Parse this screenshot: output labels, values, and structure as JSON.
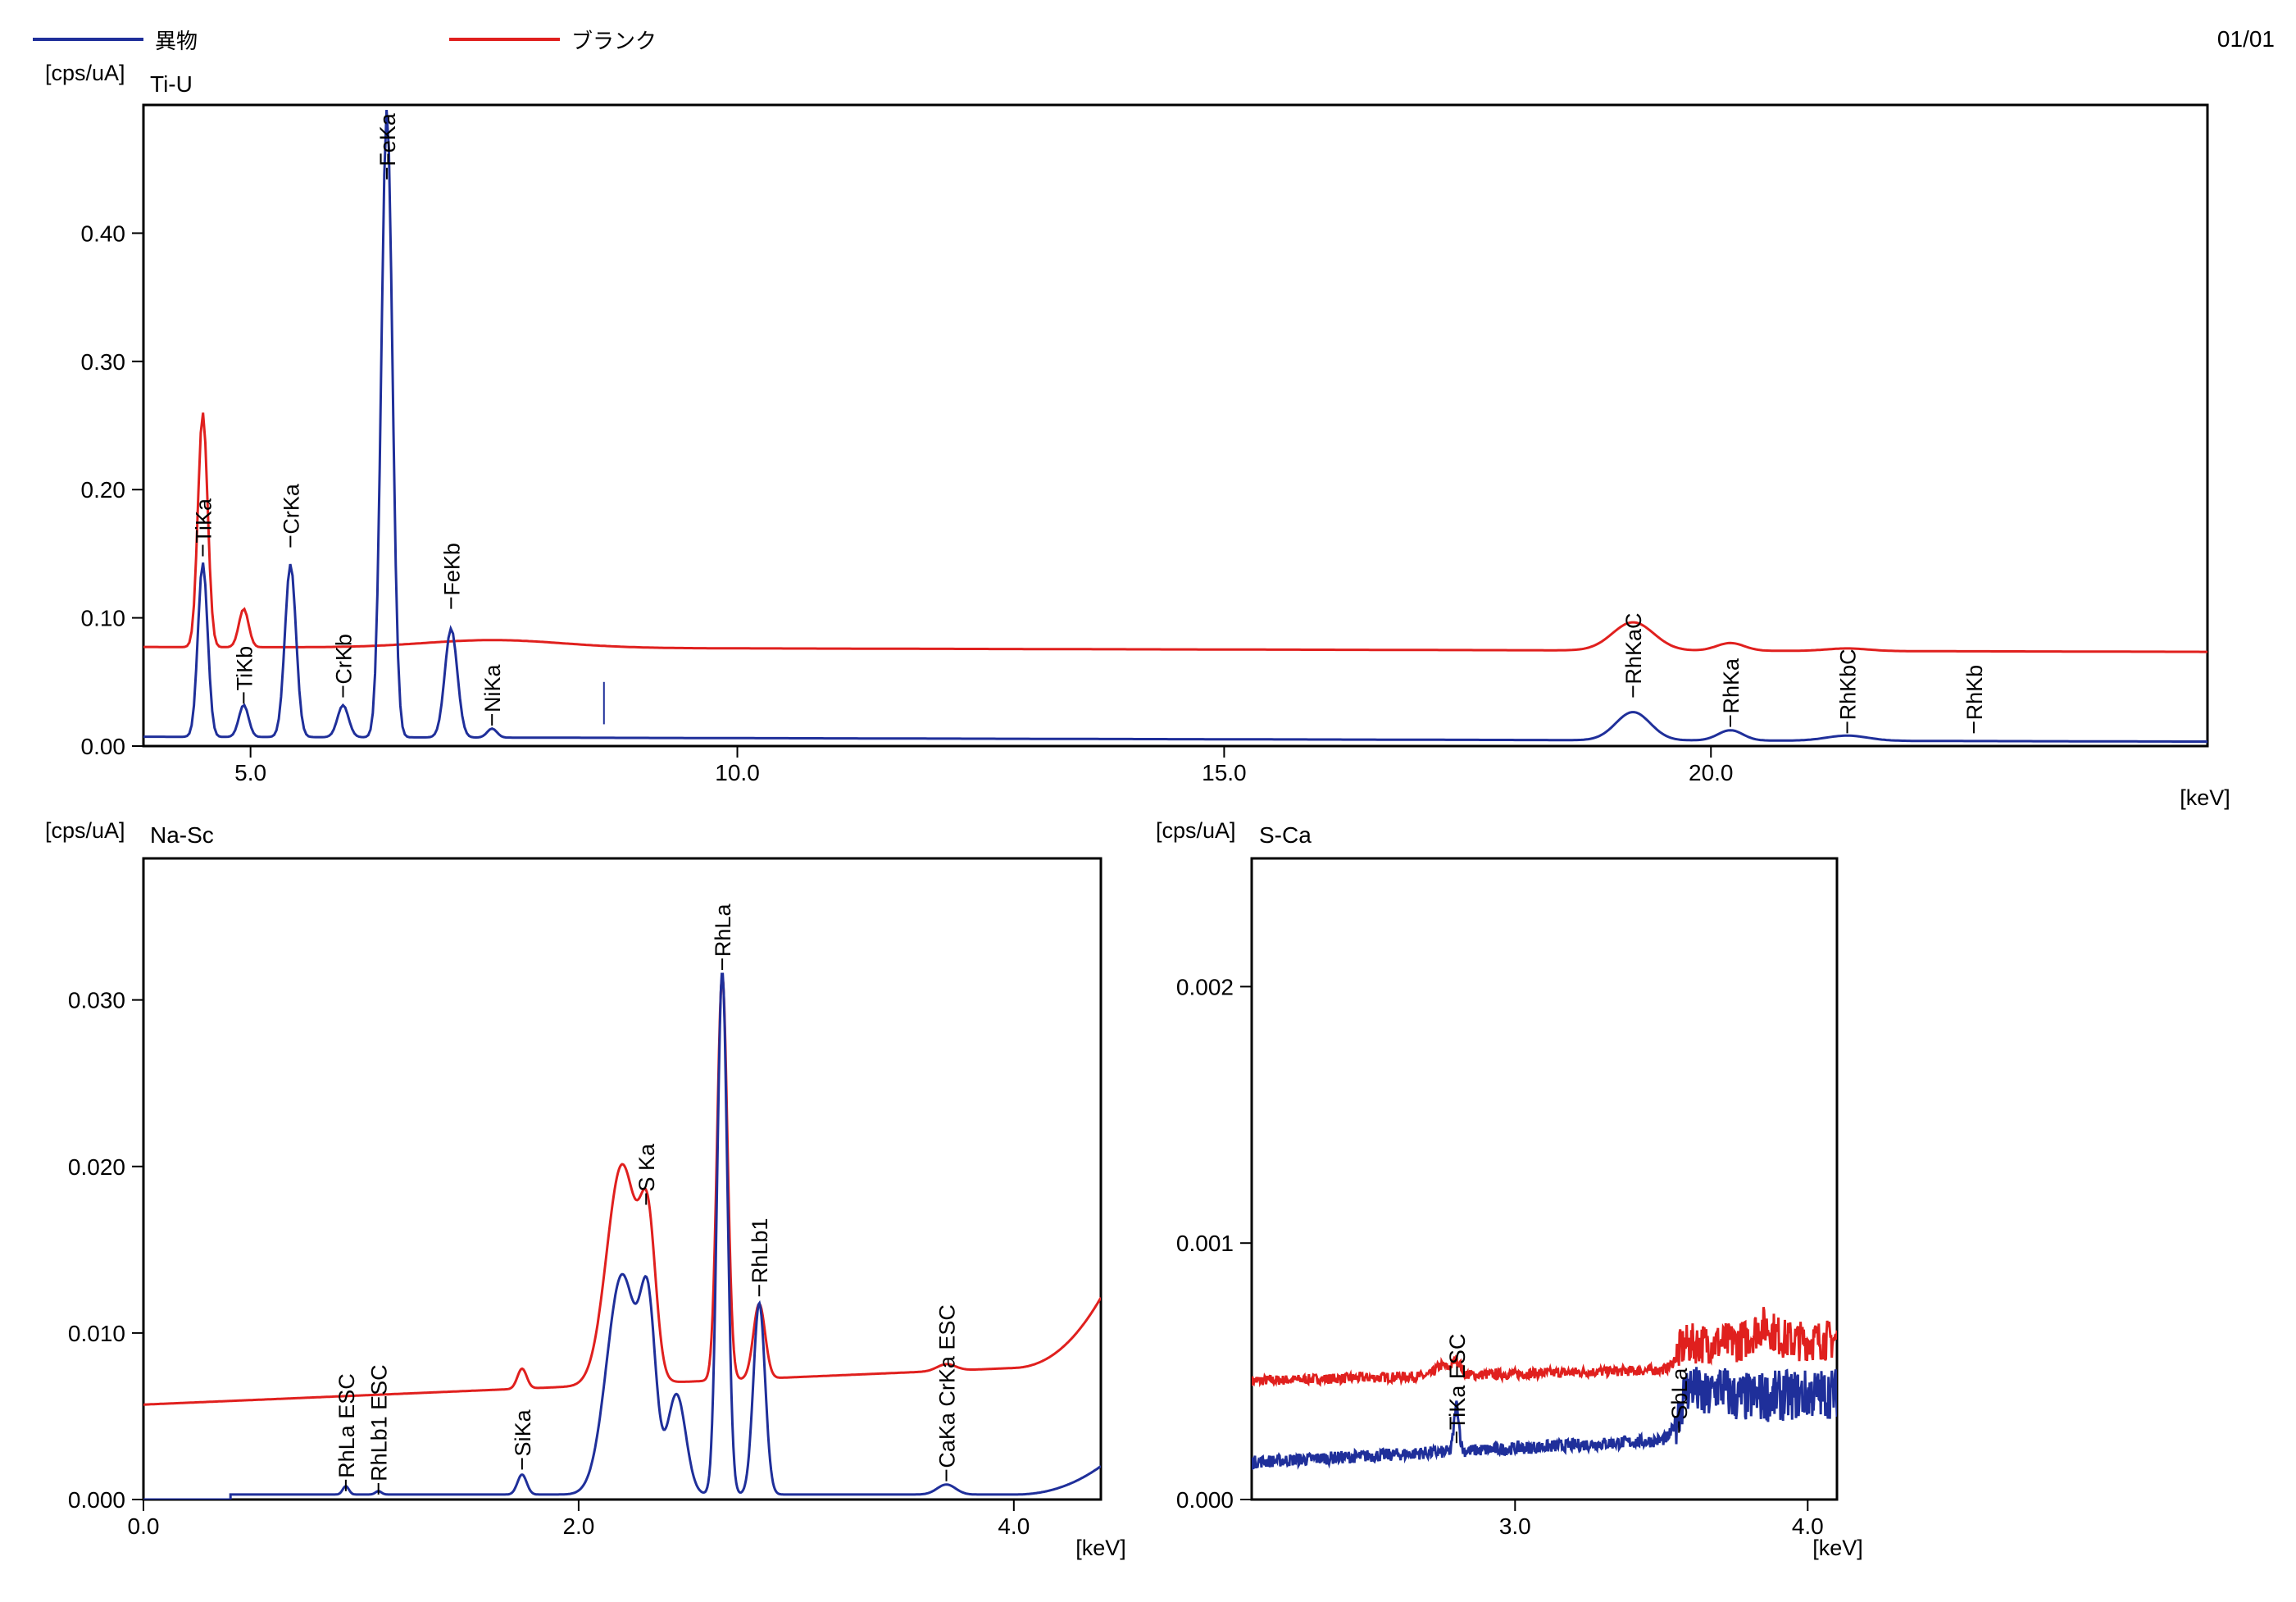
{
  "legend": {
    "items": [
      {
        "label": "異物",
        "color": "#1f2f9a"
      },
      {
        "label": "ブランク",
        "color": "#e0201e"
      }
    ]
  },
  "page_number": "01/01",
  "chart_data": [
    {
      "type": "line",
      "title": "Ti-U",
      "ylabel": "[cps/uA]",
      "xlabel": "[keV]",
      "xlim": [
        3.9,
        25.1
      ],
      "ylim": [
        0,
        0.5
      ],
      "xticks": [
        5.0,
        10.0,
        15.0,
        20.0
      ],
      "xtick_labels": [
        "5.0",
        "10.0",
        "15.0",
        "20.0"
      ],
      "yticks": [
        0.0,
        0.1,
        0.2,
        0.3,
        0.4
      ],
      "ytick_labels": [
        "0.00",
        "0.10",
        "0.20",
        "0.30",
        "0.40"
      ],
      "series": [
        {
          "name": "異物",
          "color": "#1f2f9a",
          "baseline": 0.008,
          "slope": -0.00018,
          "peaks": [
            [
              4.51,
              0.136,
              0.07
            ],
            [
              4.93,
              0.025,
              0.07
            ],
            [
              5.41,
              0.135,
              0.08
            ],
            [
              5.95,
              0.025,
              0.08
            ],
            [
              6.4,
              0.49,
              0.08
            ],
            [
              7.06,
              0.085,
              0.09
            ],
            [
              7.48,
              0.007,
              0.07
            ],
            [
              19.2,
              0.022,
              0.25
            ],
            [
              20.2,
              0.008,
              0.18
            ],
            [
              21.4,
              0.004,
              0.3
            ]
          ]
        },
        {
          "name": "ブランク",
          "color": "#e0201e",
          "baseline": 0.078,
          "slope": -0.00018,
          "bump": [
            7.5,
            0.006
          ],
          "peaks": [
            [
              4.51,
              0.183,
              0.07
            ],
            [
              4.93,
              0.03,
              0.07
            ],
            [
              19.2,
              0.022,
              0.3
            ],
            [
              20.2,
              0.006,
              0.2
            ],
            [
              21.4,
              0.002,
              0.3
            ]
          ]
        }
      ],
      "annotations": [
        {
          "label": "TiKa",
          "x": 4.51,
          "y": 0.148
        },
        {
          "label": "TiKb",
          "x": 4.93,
          "y": 0.033
        },
        {
          "label": "CrKa",
          "x": 5.41,
          "y": 0.155
        },
        {
          "label": "CrKb",
          "x": 5.95,
          "y": 0.038
        },
        {
          "label": "FeKa",
          "x": 6.4,
          "y": 0.442
        },
        {
          "label": "FeKb",
          "x": 7.06,
          "y": 0.107
        },
        {
          "label": "NiKa",
          "x": 7.48,
          "y": 0.016
        },
        {
          "label": "RhKaC",
          "x": 19.2,
          "y": 0.038
        },
        {
          "label": "RhKa",
          "x": 20.2,
          "y": 0.015
        },
        {
          "label": "RhKbC",
          "x": 21.4,
          "y": 0.01
        },
        {
          "label": "RhKb",
          "x": 22.7,
          "y": 0.01
        }
      ],
      "marker": {
        "x": 8.63,
        "y_from": 0.017,
        "y_to": 0.05
      }
    },
    {
      "type": "line",
      "title": "Na-Sc",
      "ylabel": "[cps/uA]",
      "xlabel": "[keV]",
      "xlim": [
        0.0,
        4.4
      ],
      "ylim": [
        0,
        0.0385
      ],
      "xticks": [
        0.0,
        2.0,
        4.0
      ],
      "xtick_labels": [
        "0.0",
        "2.0",
        "4.0"
      ],
      "yticks": [
        0.0,
        0.01,
        0.02,
        0.03
      ],
      "ytick_labels": [
        "0.000",
        "0.010",
        "0.020",
        "0.030"
      ],
      "series": [
        {
          "name": "異物",
          "color": "#1f2f9a",
          "baseline": 0.0003,
          "start": 0.4,
          "tail": [
            4.0,
            0.0017
          ],
          "peaks": [
            [
              0.93,
              0.0005,
              0.02
            ],
            [
              1.08,
              0.0002,
              0.02
            ],
            [
              1.74,
              0.0012,
              0.03
            ],
            [
              2.2,
              0.0132,
              0.1
            ],
            [
              2.32,
              0.0095,
              0.05
            ],
            [
              2.45,
              0.006,
              0.06
            ],
            [
              2.66,
              0.0314,
              0.033
            ],
            [
              2.83,
              0.0115,
              0.038
            ],
            [
              3.69,
              0.0006,
              0.06
            ]
          ]
        },
        {
          "name": "ブランク",
          "color": "#e0201e",
          "baseline": 0.0057,
          "start": 0.0,
          "slope": 0.00055,
          "tail": [
            4.0,
            0.004
          ],
          "peaks": [
            [
              1.74,
              0.0012,
              0.03
            ],
            [
              2.2,
              0.0132,
              0.1
            ],
            [
              2.32,
              0.008,
              0.05
            ],
            [
              2.66,
              0.0243,
              0.033
            ],
            [
              2.83,
              0.0045,
              0.038
            ],
            [
              3.69,
              0.0004,
              0.06
            ]
          ]
        }
      ],
      "annotations": [
        {
          "label": "RhLa ESC",
          "x": 0.93,
          "y": 0.0005
        },
        {
          "label": "RhLb1 ESC",
          "x": 1.08,
          "y": 0.0003
        },
        {
          "label": "SiKa",
          "x": 1.74,
          "y": 0.0018
        },
        {
          "label": "S Ka",
          "x": 2.31,
          "y": 0.0177
        },
        {
          "label": "RhLa",
          "x": 2.66,
          "y": 0.0318
        },
        {
          "label": "RhLb1",
          "x": 2.83,
          "y": 0.0122
        },
        {
          "label": "CaKa CrKa ESC",
          "x": 3.69,
          "y": 0.0011
        }
      ]
    },
    {
      "type": "line",
      "title": "S-Ca",
      "ylabel": "[cps/uA]",
      "xlabel": "[keV]",
      "xlim": [
        2.1,
        4.1
      ],
      "ylim": [
        0,
        0.0025
      ],
      "xticks": [
        3.0,
        4.0
      ],
      "xtick_labels": [
        "3.0",
        "4.0"
      ],
      "yticks": [
        0.0,
        0.001,
        0.002
      ],
      "ytick_labels": [
        "0.000",
        "0.001",
        "0.002"
      ],
      "series": [
        {
          "name": "異物",
          "color": "#1f2f9a",
          "baseline": 2e-05,
          "slope": 6e-05,
          "step": [
            3.55,
            0.00015
          ],
          "noise": 2.5e-05,
          "peaks": [
            [
              2.8,
              0.00018,
              0.012
            ],
            [
              3.6,
              6e-05,
              0.03
            ],
            [
              3.7,
              5e-05,
              0.03
            ]
          ]
        },
        {
          "name": "ブランク",
          "color": "#e0201e",
          "baseline": 0.0004,
          "slope": 3e-05,
          "step": [
            3.55,
            0.0001
          ],
          "noise": 2e-05,
          "peaks": [
            [
              2.75,
              4e-05,
              0.03
            ],
            [
              2.8,
              6e-05,
              0.02
            ],
            [
              3.85,
              6e-05,
              0.05
            ]
          ]
        }
      ],
      "annotations": [
        {
          "label": "TiKa ESC",
          "x": 2.8,
          "y": 0.00022
        },
        {
          "label": "SbLa",
          "x": 3.56,
          "y": 0.00026
        }
      ]
    }
  ]
}
